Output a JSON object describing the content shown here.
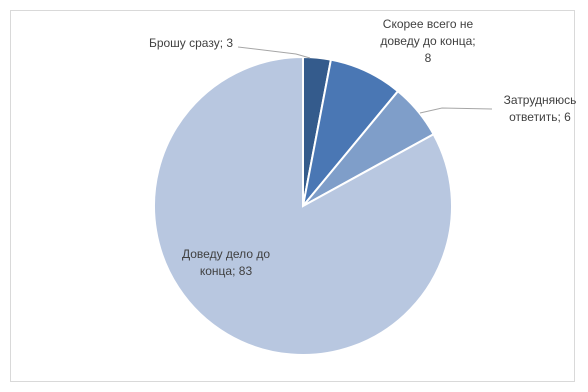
{
  "chart_data": {
    "type": "pie",
    "categories": [
      "Брошу сразу",
      "Скорее всего не доведу до конца",
      "Затрудняюсь ответить",
      "Доведу дело до конца"
    ],
    "values": [
      3,
      8,
      6,
      83
    ],
    "labels": [
      {
        "lines": [
          "Брошу сразу; 3"
        ]
      },
      {
        "lines": [
          "Скорее всего не",
          "доведу до конца;",
          "8"
        ]
      },
      {
        "lines": [
          "Затрудняюсь",
          "ответить; 6"
        ]
      },
      {
        "lines": [
          "Доведу дело до",
          "конца; 83"
        ]
      }
    ],
    "colors": [
      "#345b8c",
      "#4a77b4",
      "#7f9ec9",
      "#b8c7e0"
    ],
    "legend": "none",
    "start_angle_deg": 0,
    "direction": "clockwise"
  }
}
